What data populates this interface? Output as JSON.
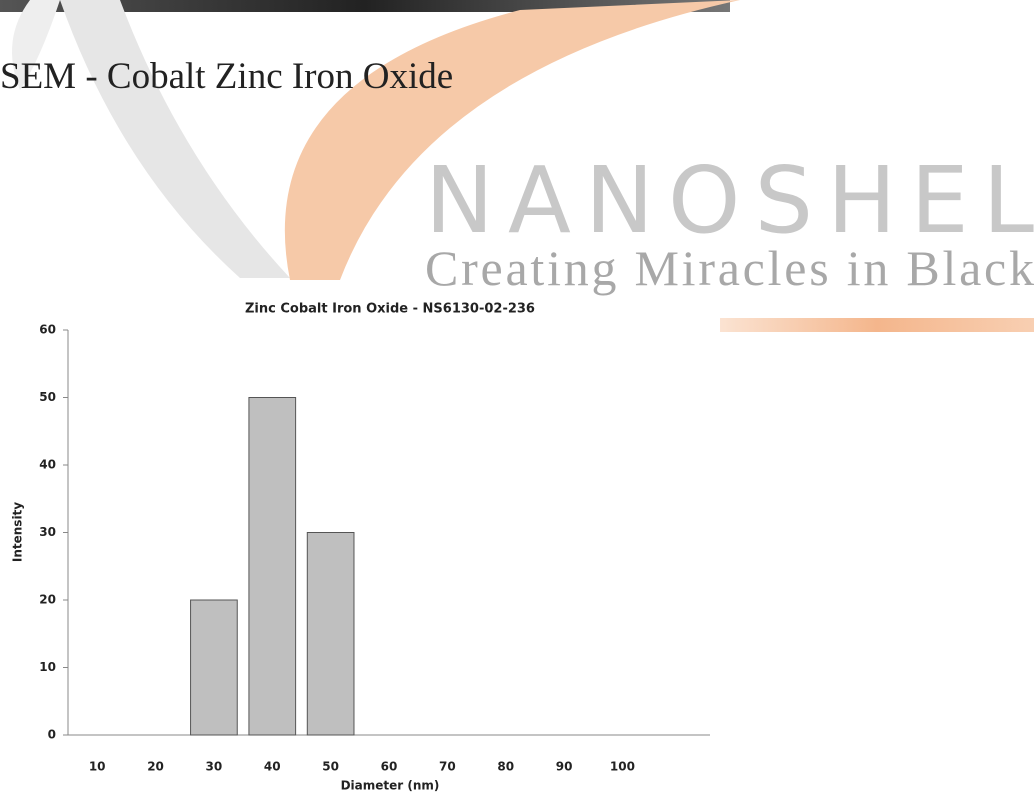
{
  "heading": "SEM - Cobalt Zinc Iron Oxide",
  "watermark": {
    "brand": "NANOSHEL",
    "tagline": "Creating Miracles in Black"
  },
  "chart_data": {
    "type": "bar",
    "title": "Zinc Cobalt Iron Oxide - NS6130-02-236",
    "x_label": "Diameter (nm)",
    "y_label": "Intensity",
    "categories": [
      "10",
      "20",
      "30",
      "40",
      "50",
      "60",
      "70",
      "80",
      "90",
      "100",
      null
    ],
    "values": [
      0,
      0,
      20,
      50,
      30,
      0,
      0,
      0,
      0,
      0,
      null
    ],
    "color": "#bfbfbf",
    "ylim": [
      0,
      60
    ],
    "yticks": [
      0,
      10,
      20,
      30,
      40,
      50,
      60
    ],
    "grid": false
  }
}
